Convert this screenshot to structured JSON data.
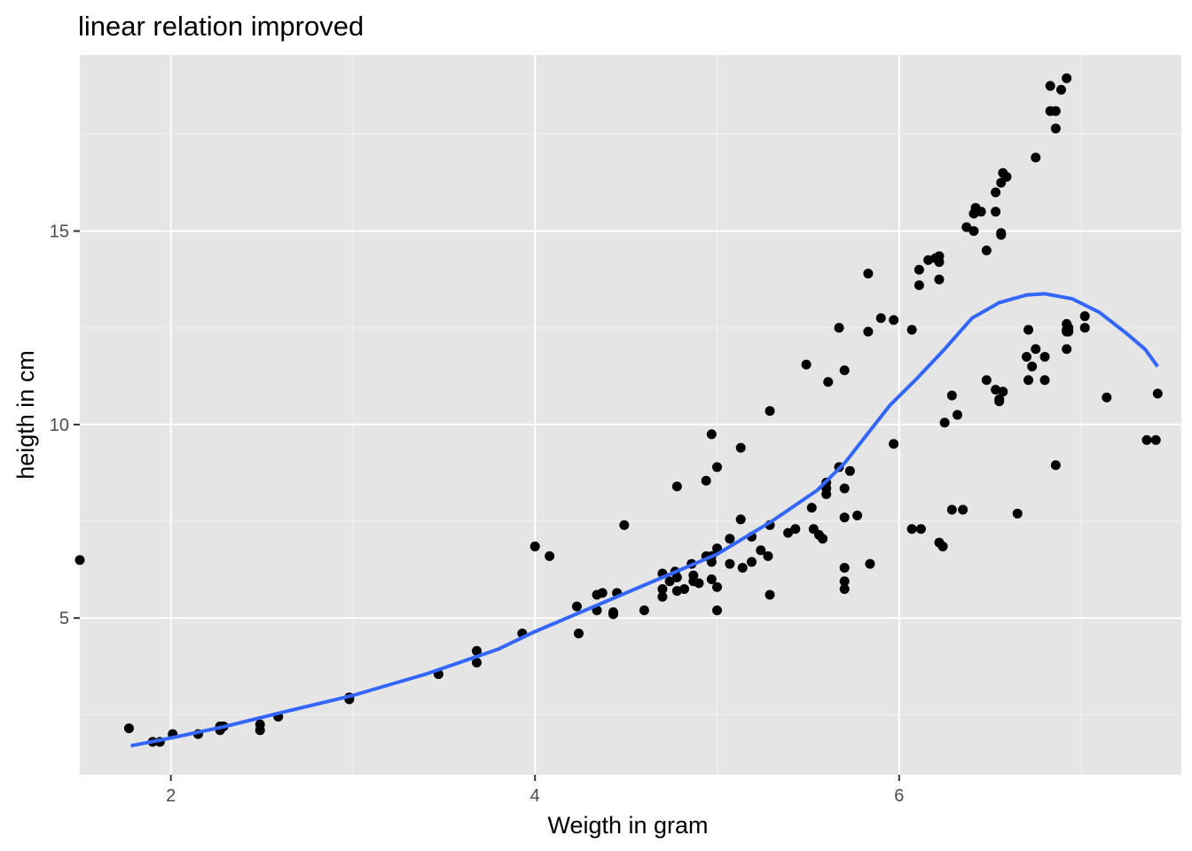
{
  "chart_data": {
    "type": "scatter",
    "title": "linear relation improved",
    "xlabel": "Weigth in gram",
    "ylabel": "heigth in cm",
    "xlim": [
      1.5,
      7.55
    ],
    "ylim": [
      0.95,
      19.55
    ],
    "x_ticks": [
      2,
      4,
      6
    ],
    "x_tick_labels": [
      "2",
      "4",
      "6"
    ],
    "y_ticks": [
      5,
      10,
      15
    ],
    "y_tick_labels": [
      "5",
      "10",
      "15"
    ],
    "x_minor_ticks": [
      3,
      5,
      7
    ],
    "y_minor_ticks": [
      2.5,
      7.5,
      12.5,
      17.5
    ],
    "grid": true,
    "panel_background": "#e5e5e5",
    "point_color": "#000000",
    "smooth_color": "#3366ff",
    "points": [
      [
        1.5,
        6.5
      ],
      [
        1.77,
        2.15
      ],
      [
        1.9,
        1.8
      ],
      [
        1.94,
        1.8
      ],
      [
        2.01,
        2.0
      ],
      [
        2.15,
        2.0
      ],
      [
        2.27,
        2.2
      ],
      [
        2.27,
        2.1
      ],
      [
        2.29,
        2.2
      ],
      [
        2.49,
        2.1
      ],
      [
        2.49,
        2.25
      ],
      [
        2.59,
        2.45
      ],
      [
        2.98,
        2.9
      ],
      [
        2.98,
        2.95
      ],
      [
        3.47,
        3.55
      ],
      [
        3.68,
        3.85
      ],
      [
        3.68,
        4.15
      ],
      [
        3.93,
        4.6
      ],
      [
        4.0,
        6.85
      ],
      [
        4.08,
        6.6
      ],
      [
        4.23,
        5.3
      ],
      [
        4.24,
        4.6
      ],
      [
        4.34,
        5.2
      ],
      [
        4.34,
        5.6
      ],
      [
        4.37,
        5.65
      ],
      [
        4.43,
        5.15
      ],
      [
        4.43,
        5.1
      ],
      [
        4.45,
        5.65
      ],
      [
        4.49,
        7.4
      ],
      [
        4.6,
        5.2
      ],
      [
        4.7,
        6.15
      ],
      [
        4.7,
        5.75
      ],
      [
        4.7,
        5.55
      ],
      [
        4.74,
        5.95
      ],
      [
        4.77,
        6.2
      ],
      [
        4.78,
        6.05
      ],
      [
        4.78,
        5.7
      ],
      [
        4.78,
        8.4
      ],
      [
        4.82,
        5.75
      ],
      [
        4.86,
        6.4
      ],
      [
        4.87,
        6.1
      ],
      [
        4.87,
        5.95
      ],
      [
        4.9,
        5.9
      ],
      [
        4.94,
        6.6
      ],
      [
        4.94,
        8.55
      ],
      [
        4.97,
        6.45
      ],
      [
        4.97,
        6.6
      ],
      [
        4.97,
        6.0
      ],
      [
        4.97,
        9.75
      ],
      [
        5.0,
        5.8
      ],
      [
        5.0,
        5.2
      ],
      [
        5.0,
        6.8
      ],
      [
        5.0,
        8.9
      ],
      [
        5.07,
        6.4
      ],
      [
        5.07,
        7.05
      ],
      [
        5.13,
        7.55
      ],
      [
        5.13,
        9.4
      ],
      [
        5.14,
        6.3
      ],
      [
        5.19,
        7.1
      ],
      [
        5.19,
        6.45
      ],
      [
        5.24,
        6.75
      ],
      [
        5.28,
        6.6
      ],
      [
        5.29,
        7.4
      ],
      [
        5.29,
        10.35
      ],
      [
        5.29,
        5.6
      ],
      [
        5.39,
        7.2
      ],
      [
        5.43,
        7.3
      ],
      [
        5.49,
        11.55
      ],
      [
        5.52,
        7.85
      ],
      [
        5.53,
        7.3
      ],
      [
        5.56,
        7.15
      ],
      [
        5.58,
        7.05
      ],
      [
        5.6,
        8.5
      ],
      [
        5.6,
        8.2
      ],
      [
        5.6,
        8.35
      ],
      [
        5.61,
        11.1
      ],
      [
        5.67,
        12.5
      ],
      [
        5.67,
        8.9
      ],
      [
        5.7,
        7.6
      ],
      [
        5.7,
        8.35
      ],
      [
        5.7,
        6.3
      ],
      [
        5.7,
        5.95
      ],
      [
        5.7,
        5.75
      ],
      [
        5.7,
        11.4
      ],
      [
        5.73,
        8.8
      ],
      [
        5.77,
        7.65
      ],
      [
        5.83,
        13.9
      ],
      [
        5.83,
        12.4
      ],
      [
        5.84,
        6.4
      ],
      [
        5.9,
        12.75
      ],
      [
        5.97,
        12.7
      ],
      [
        5.97,
        9.5
      ],
      [
        6.07,
        12.45
      ],
      [
        6.07,
        7.3
      ],
      [
        6.12,
        7.3
      ],
      [
        6.11,
        13.6
      ],
      [
        6.11,
        14.0
      ],
      [
        6.16,
        14.25
      ],
      [
        6.2,
        14.3
      ],
      [
        6.22,
        14.35
      ],
      [
        6.22,
        14.2
      ],
      [
        6.22,
        13.75
      ],
      [
        6.22,
        6.95
      ],
      [
        6.24,
        6.85
      ],
      [
        6.25,
        10.05
      ],
      [
        6.29,
        10.75
      ],
      [
        6.29,
        7.8
      ],
      [
        6.32,
        10.25
      ],
      [
        6.35,
        7.8
      ],
      [
        6.37,
        15.1
      ],
      [
        6.41,
        15.0
      ],
      [
        6.41,
        15.45
      ],
      [
        6.42,
        15.6
      ],
      [
        6.45,
        15.5
      ],
      [
        6.48,
        14.5
      ],
      [
        6.48,
        11.15
      ],
      [
        6.53,
        15.5
      ],
      [
        6.53,
        16.0
      ],
      [
        6.53,
        10.9
      ],
      [
        6.55,
        10.6
      ],
      [
        6.55,
        10.65
      ],
      [
        6.56,
        16.25
      ],
      [
        6.57,
        10.85
      ],
      [
        6.57,
        16.5
      ],
      [
        6.56,
        14.95
      ],
      [
        6.56,
        14.9
      ],
      [
        6.59,
        16.4
      ],
      [
        6.65,
        7.7
      ],
      [
        6.7,
        11.75
      ],
      [
        6.71,
        12.45
      ],
      [
        6.71,
        11.15
      ],
      [
        6.73,
        11.5
      ],
      [
        6.75,
        16.9
      ],
      [
        6.75,
        11.95
      ],
      [
        6.8,
        11.75
      ],
      [
        6.8,
        11.15
      ],
      [
        6.83,
        18.1
      ],
      [
        6.83,
        18.75
      ],
      [
        6.86,
        18.1
      ],
      [
        6.86,
        17.65
      ],
      [
        6.86,
        8.95
      ],
      [
        6.89,
        18.65
      ],
      [
        6.92,
        18.95
      ],
      [
        6.92,
        12.6
      ],
      [
        6.92,
        12.4
      ],
      [
        6.92,
        12.45
      ],
      [
        6.92,
        11.95
      ],
      [
        6.93,
        12.5
      ],
      [
        6.93,
        12.4
      ],
      [
        7.02,
        12.8
      ],
      [
        7.02,
        12.5
      ],
      [
        7.14,
        10.7
      ],
      [
        7.36,
        9.6
      ],
      [
        7.41,
        9.6
      ],
      [
        7.42,
        10.8
      ]
    ],
    "smooth_line": [
      [
        1.78,
        1.7
      ],
      [
        2.0,
        1.9
      ],
      [
        2.3,
        2.2
      ],
      [
        2.6,
        2.55
      ],
      [
        3.0,
        3.0
      ],
      [
        3.4,
        3.55
      ],
      [
        3.8,
        4.2
      ],
      [
        4.0,
        4.65
      ],
      [
        4.3,
        5.25
      ],
      [
        4.6,
        5.85
      ],
      [
        5.0,
        6.65
      ],
      [
        5.3,
        7.5
      ],
      [
        5.55,
        8.3
      ],
      [
        5.7,
        9.0
      ],
      [
        5.8,
        9.6
      ],
      [
        5.95,
        10.5
      ],
      [
        6.1,
        11.2
      ],
      [
        6.25,
        11.95
      ],
      [
        6.4,
        12.75
      ],
      [
        6.55,
        13.15
      ],
      [
        6.7,
        13.35
      ],
      [
        6.8,
        13.38
      ],
      [
        6.95,
        13.25
      ],
      [
        7.1,
        12.9
      ],
      [
        7.25,
        12.35
      ],
      [
        7.35,
        11.95
      ],
      [
        7.42,
        11.5
      ]
    ]
  }
}
